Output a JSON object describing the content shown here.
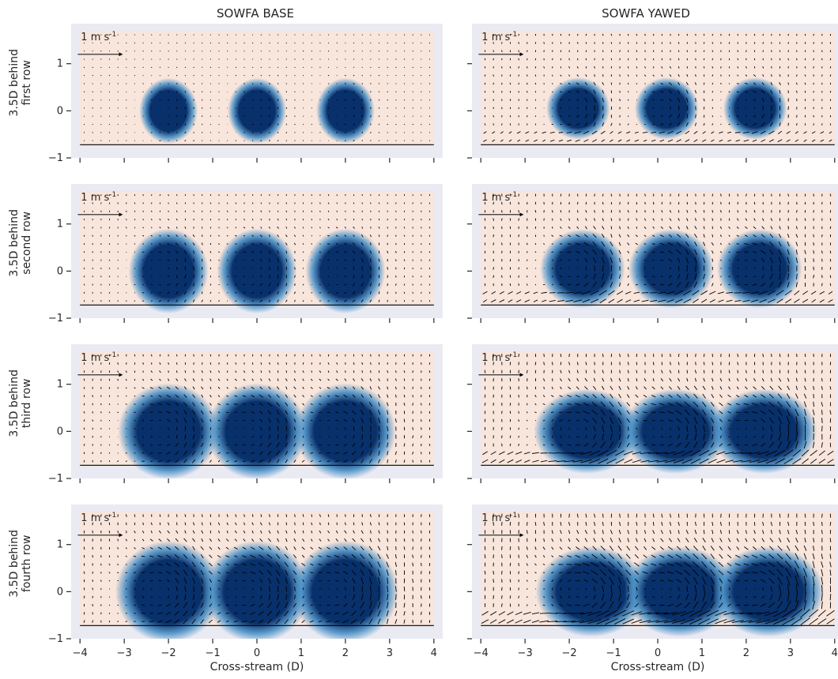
{
  "chart_data": {
    "type": "heatmap",
    "description_fields": "cross-stream wake cross-sections with velocity quiver arrows",
    "columns": [
      "SOWFA BASE",
      "SOWFA YAWED"
    ],
    "rows": [
      "3.5D behind\nfirst row",
      "3.5D behind\nsecond row",
      "3.5D behind\nthird row",
      "3.5D behind\nfourth row"
    ],
    "xlabel": "Cross-stream (D)",
    "xlim": [
      -4.2,
      4.2
    ],
    "ylim": [
      -1,
      1.85
    ],
    "x_ticks": [
      -4,
      -3,
      -2,
      -1,
      0,
      1,
      2,
      3,
      4
    ],
    "x_tick_labels": [
      "−4",
      "−3",
      "−2",
      "−1",
      "0",
      "1",
      "2",
      "3",
      "4"
    ],
    "y_ticks": [
      -1,
      0,
      1
    ],
    "y_tick_labels": [
      "−1",
      "0",
      "1"
    ],
    "data_extent": {
      "x": [
        -4.0,
        4.0
      ],
      "y": [
        -0.72,
        1.7
      ]
    },
    "reference_arrow": {
      "label": "1 m s",
      "superscript": "-1",
      "x_start": -4.05,
      "x_end": -3.05,
      "y": 1.2
    },
    "colors": {
      "deficit": "#08306b",
      "mid": "#4a90c6",
      "positive": "#fbe3d4",
      "background": "#eaeaf2",
      "arrow": "#000000"
    },
    "panels": [
      {
        "column": "SOWFA BASE",
        "row": 1,
        "wakes": [
          {
            "x": -2.0,
            "y": 0.0,
            "rx": 0.55,
            "ry": 0.58
          },
          {
            "x": 0.0,
            "y": 0.0,
            "rx": 0.55,
            "ry": 0.58
          },
          {
            "x": 2.0,
            "y": 0.0,
            "rx": 0.55,
            "ry": 0.58
          }
        ]
      },
      {
        "column": "SOWFA BASE",
        "row": 2,
        "wakes": [
          {
            "x": -2.0,
            "y": 0.0,
            "rx": 0.75,
            "ry": 0.75
          },
          {
            "x": 0.0,
            "y": 0.0,
            "rx": 0.75,
            "ry": 0.75
          },
          {
            "x": 2.0,
            "y": 0.0,
            "rx": 0.75,
            "ry": 0.75
          }
        ]
      },
      {
        "column": "SOWFA BASE",
        "row": 3,
        "wakes": [
          {
            "x": -2.0,
            "y": 0.0,
            "rx": 0.95,
            "ry": 0.85
          },
          {
            "x": 0.0,
            "y": 0.0,
            "rx": 0.95,
            "ry": 0.85
          },
          {
            "x": 2.0,
            "y": 0.0,
            "rx": 0.95,
            "ry": 0.85
          }
        ]
      },
      {
        "column": "SOWFA BASE",
        "row": 4,
        "wakes": [
          {
            "x": -2.0,
            "y": 0.0,
            "rx": 1.0,
            "ry": 0.9
          },
          {
            "x": 0.0,
            "y": 0.0,
            "rx": 1.0,
            "ry": 0.9
          },
          {
            "x": 2.0,
            "y": 0.0,
            "rx": 1.0,
            "ry": 0.9
          }
        ]
      },
      {
        "column": "SOWFA YAWED",
        "row": 1,
        "wakes": [
          {
            "x": -1.8,
            "y": 0.05,
            "rx": 0.6,
            "ry": 0.55
          },
          {
            "x": 0.2,
            "y": 0.05,
            "rx": 0.6,
            "ry": 0.55
          },
          {
            "x": 2.2,
            "y": 0.05,
            "rx": 0.6,
            "ry": 0.55
          }
        ]
      },
      {
        "column": "SOWFA YAWED",
        "row": 2,
        "wakes": [
          {
            "x": -1.7,
            "y": 0.05,
            "rx": 0.8,
            "ry": 0.7
          },
          {
            "x": 0.3,
            "y": 0.05,
            "rx": 0.8,
            "ry": 0.7
          },
          {
            "x": 2.3,
            "y": 0.05,
            "rx": 0.8,
            "ry": 0.7
          }
        ]
      },
      {
        "column": "SOWFA YAWED",
        "row": 3,
        "wakes": [
          {
            "x": -1.6,
            "y": 0.0,
            "rx": 1.0,
            "ry": 0.75
          },
          {
            "x": 0.4,
            "y": 0.0,
            "rx": 1.0,
            "ry": 0.75
          },
          {
            "x": 2.4,
            "y": 0.0,
            "rx": 1.0,
            "ry": 0.75
          }
        ]
      },
      {
        "column": "SOWFA YAWED",
        "row": 4,
        "wakes": [
          {
            "x": -1.5,
            "y": 0.0,
            "rx": 1.05,
            "ry": 0.8
          },
          {
            "x": 0.5,
            "y": 0.0,
            "rx": 1.05,
            "ry": 0.8
          },
          {
            "x": 2.5,
            "y": 0.0,
            "rx": 1.05,
            "ry": 0.8
          }
        ]
      }
    ]
  }
}
